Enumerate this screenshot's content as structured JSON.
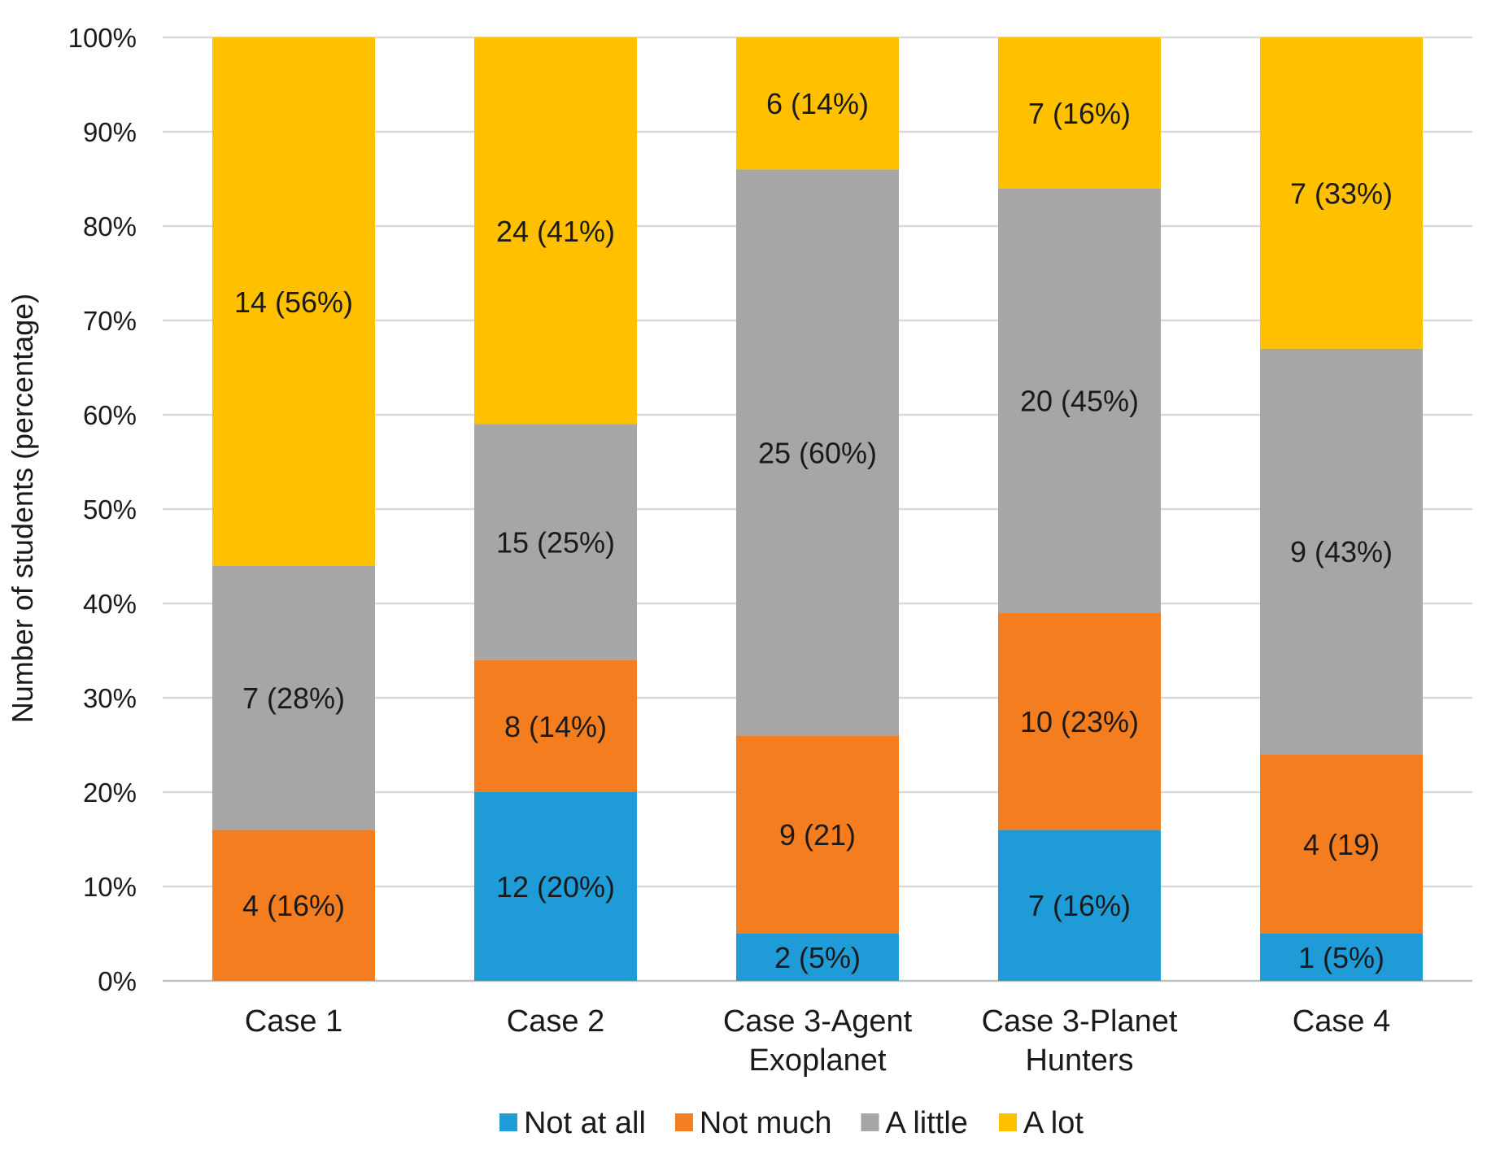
{
  "chart_data": {
    "type": "bar",
    "stacked": true,
    "normalized_percent": true,
    "ylabel": "Number of students (percentage)",
    "xlabel": "",
    "ylim": [
      0,
      100
    ],
    "y_ticks": [
      "0%",
      "10%",
      "20%",
      "30%",
      "40%",
      "50%",
      "60%",
      "70%",
      "80%",
      "90%",
      "100%"
    ],
    "grid": true,
    "legend_position": "bottom",
    "categories": [
      [
        "Case 1"
      ],
      [
        "Case 2"
      ],
      [
        "Case 3-Agent",
        "Exoplanet"
      ],
      [
        "Case 3-Planet",
        "Hunters"
      ],
      [
        "Case 4"
      ]
    ],
    "series": [
      {
        "name": "Not at all",
        "color": "#1f9bd7",
        "values": [
          0,
          20,
          5,
          16,
          5
        ],
        "labels": [
          "",
          "12 (20%)",
          "2 (5%)",
          "7 (16%)",
          "1 (5%)"
        ]
      },
      {
        "name": "Not much",
        "color": "#f47d20",
        "values": [
          16,
          14,
          21,
          23,
          19
        ],
        "labels": [
          "4 (16%)",
          "8 (14%)",
          "9 (21)",
          "10 (23%)",
          "4 (19)"
        ]
      },
      {
        "name": "A little",
        "color": "#a6a6a6",
        "values": [
          28,
          25,
          60,
          45,
          43
        ],
        "labels": [
          "7 (28%)",
          "15 (25%)",
          "25 (60%)",
          "20 (45%)",
          "9 (43%)"
        ]
      },
      {
        "name": "A lot",
        "color": "#ffc000",
        "values": [
          56,
          41,
          14,
          16,
          33
        ],
        "labels": [
          "14 (56%)",
          "24 (41%)",
          "6 (14%)",
          "7 (16%)",
          "7 (33%)"
        ]
      }
    ]
  }
}
